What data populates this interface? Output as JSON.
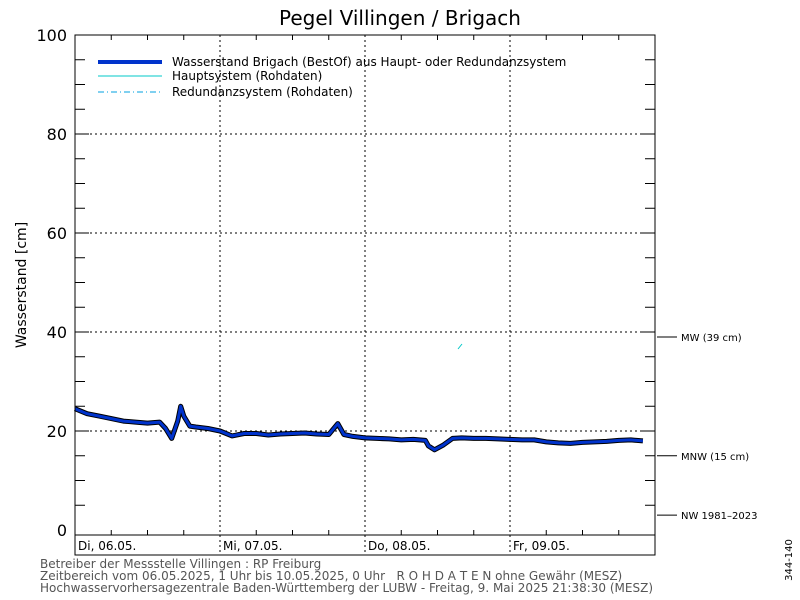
{
  "chart_data": {
    "type": "line",
    "title": "Pegel Villingen / Brigach",
    "ylabel": "Wasserstand [cm]",
    "xlabel": "",
    "ylim": [
      0,
      100
    ],
    "y_ticks": [
      "0",
      "20",
      "40",
      "60",
      "80",
      "100"
    ],
    "x_ticks": [
      "Di, 06.05.",
      "Mi, 07.05.",
      "Do, 08.05.",
      "Fr, 09.05."
    ],
    "x_range_hours": [
      0,
      96
    ],
    "grid": true,
    "legend_position": "top-left",
    "legend": [
      "Wasserstand Brigach (BestOf)   aus Haupt- oder Redundanzsystem",
      "Hauptsystem (Rohdaten)",
      "Redundanzsystem (Rohdaten)"
    ],
    "colors": {
      "bestof": "#0033cc",
      "haupt": "#00c8c8",
      "redundanz": "#00a0e0"
    },
    "reference_lines": [
      {
        "label": "MW (39 cm)",
        "value": 39
      },
      {
        "label": "MNW (15 cm)",
        "value": 15
      },
      {
        "label": "NW 1981–2023",
        "value": 3
      }
    ],
    "series": [
      {
        "name": "Wasserstand Brigach (BestOf)   aus Haupt- oder Redundanzsystem",
        "x_hours": [
          0,
          2,
          4,
          6,
          8,
          10,
          12,
          14,
          15,
          16,
          17,
          17.5,
          18,
          18.5,
          19,
          20,
          22,
          24,
          26,
          28,
          30,
          32,
          34,
          36,
          38,
          40,
          42,
          43.5,
          44.5,
          46,
          48,
          50,
          52,
          54,
          56,
          58,
          58.5,
          59.5,
          61,
          62.5,
          64,
          66,
          68,
          70,
          72,
          74,
          76,
          78,
          80,
          82,
          84,
          86,
          88,
          90,
          92,
          94
        ],
        "values": [
          24.5,
          23.5,
          23,
          22.5,
          22,
          21.8,
          21.6,
          21.8,
          20.5,
          18.5,
          22,
          25,
          23,
          22,
          21,
          20.8,
          20.5,
          20,
          19,
          19.5,
          19.5,
          19.2,
          19.4,
          19.5,
          19.6,
          19.4,
          19.3,
          21.5,
          19.3,
          18.9,
          18.6,
          18.5,
          18.4,
          18.2,
          18.3,
          18.1,
          17,
          16.2,
          17.2,
          18.5,
          18.6,
          18.5,
          18.5,
          18.4,
          18.3,
          18.2,
          18.2,
          17.8,
          17.6,
          17.5,
          17.7,
          17.8,
          17.9,
          18.1,
          18.2,
          18
        ]
      }
    ]
  },
  "footer": {
    "line1": "Betreiber der Messstelle Villingen : RP Freiburg",
    "line2": "Zeitbereich vom 06.05.2025, 1 Uhr bis 10.05.2025, 0 Uhr   R O H D A T E N ohne Gewähr (MESZ)",
    "line3": "Hochwasservorhersagezentrale Baden-Württemberg der LUBW - Freitag, 9. Mai 2025 21:38:30 (MESZ)"
  },
  "station_code": "344-140"
}
